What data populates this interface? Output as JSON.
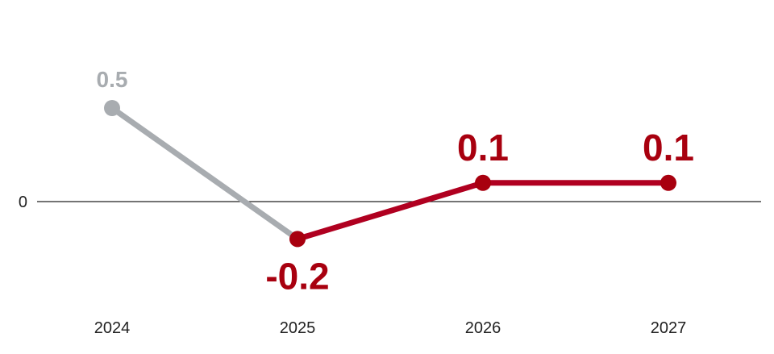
{
  "chart_data": {
    "type": "line",
    "categories": [
      "2024",
      "2025",
      "2026",
      "2027"
    ],
    "series": [
      {
        "values": [
          0.5,
          -0.2,
          null,
          null
        ],
        "labels": [
          "0.5",
          null,
          null,
          null
        ],
        "color": "#a8acb0",
        "status": "actual"
      },
      {
        "values": [
          null,
          -0.2,
          0.1,
          0.1
        ],
        "labels": [
          null,
          "-0.2",
          "0.1",
          "0.1"
        ],
        "color": "#b00020",
        "status": "forecast"
      }
    ],
    "zero_line": {
      "value": 0,
      "label": "0"
    },
    "ylim": [
      -0.4,
      0.8
    ],
    "grid": false,
    "legend": "none"
  }
}
